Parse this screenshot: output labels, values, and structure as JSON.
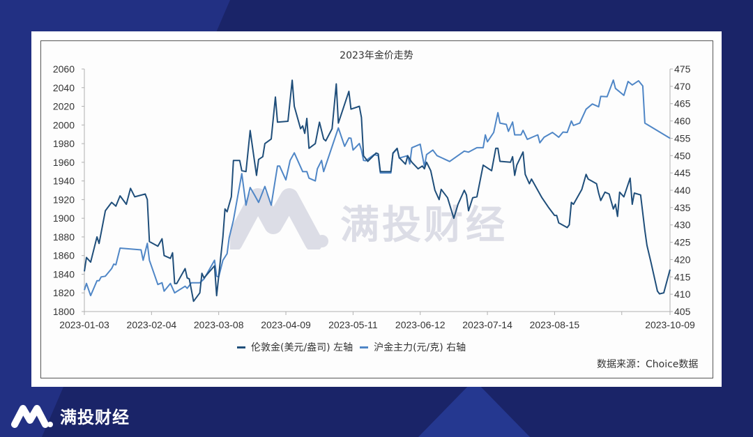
{
  "brand": {
    "name": "满投财经",
    "watermark": "满投财经"
  },
  "colors": {
    "background": "#1a2468",
    "london_gold": "#1f4e7a",
    "shanghai_gold": "#4f86c6"
  },
  "chart_data": {
    "type": "line",
    "title": "2023年金价走势",
    "x_tick_labels": [
      "2023-01-03",
      "2023-02-04",
      "2023-03-08",
      "2023-04-09",
      "2023-05-11",
      "2023-06-12",
      "2023-07-14",
      "2023-08-15",
      "",
      "2023-10-09"
    ],
    "x_ticks": [
      "2023-01-03",
      "2023-02-04",
      "2023-03-08",
      "2023-04-09",
      "2023-05-11",
      "2023-06-12",
      "2023-07-14",
      "2023-08-15",
      "2023-09-16",
      "2023-10-09"
    ],
    "xlim": [
      "2023-01-03",
      "2023-10-09"
    ],
    "y_left": {
      "range": [
        1800,
        2060
      ],
      "ticks": [
        "1800",
        "1820",
        "1840",
        "1860",
        "1880",
        "1900",
        "1920",
        "1940",
        "1960",
        "1980",
        "2000",
        "2020",
        "2040",
        "2060"
      ]
    },
    "y_right": {
      "range": [
        405,
        475
      ],
      "ticks": [
        "405",
        "410",
        "415",
        "420",
        "425",
        "430",
        "435",
        "440",
        "445",
        "450",
        "455",
        "460",
        "465",
        "470",
        "475"
      ]
    },
    "grid": false,
    "legend_position": "bottom",
    "source": "数据来源：Choice数据",
    "series": [
      {
        "name": "伦敦金(美元/盎司) 左轴",
        "axis": "left",
        "points": [
          [
            "2023-01-03",
            1843
          ],
          [
            "2023-01-04",
            1858
          ],
          [
            "2023-01-06",
            1853
          ],
          [
            "2023-01-09",
            1880
          ],
          [
            "2023-01-10",
            1873
          ],
          [
            "2023-01-13",
            1908
          ],
          [
            "2023-01-16",
            1917
          ],
          [
            "2023-01-18",
            1913
          ],
          [
            "2023-01-20",
            1924
          ],
          [
            "2023-01-23",
            1915
          ],
          [
            "2023-01-25",
            1932
          ],
          [
            "2023-01-27",
            1923
          ],
          [
            "2023-02-01",
            1926
          ],
          [
            "2023-02-02",
            1920
          ],
          [
            "2023-02-03",
            1875
          ],
          [
            "2023-02-07",
            1870
          ],
          [
            "2023-02-09",
            1878
          ],
          [
            "2023-02-10",
            1860
          ],
          [
            "2023-02-13",
            1857
          ],
          [
            "2023-02-14",
            1863
          ],
          [
            "2023-02-15",
            1830
          ],
          [
            "2023-02-16",
            1830
          ],
          [
            "2023-02-20",
            1846
          ],
          [
            "2023-02-21",
            1836
          ],
          [
            "2023-02-22",
            1835
          ],
          [
            "2023-02-24",
            1811
          ],
          [
            "2023-02-27",
            1820
          ],
          [
            "2023-02-28",
            1841
          ],
          [
            "2023-03-01",
            1836
          ],
          [
            "2023-03-06",
            1849
          ],
          [
            "2023-03-07",
            1817
          ],
          [
            "2023-03-10",
            1880
          ],
          [
            "2023-03-11",
            1910
          ],
          [
            "2023-03-12",
            1907
          ],
          [
            "2023-03-14",
            1923
          ],
          [
            "2023-03-15",
            1962
          ],
          [
            "2023-03-18",
            1962
          ],
          [
            "2023-03-19",
            1951
          ],
          [
            "2023-03-21",
            1950
          ],
          [
            "2023-03-23",
            1994
          ],
          [
            "2023-03-26",
            1946
          ],
          [
            "2023-03-27",
            1963
          ],
          [
            "2023-03-29",
            1966
          ],
          [
            "2023-03-30",
            1980
          ],
          [
            "2023-04-02",
            1985
          ],
          [
            "2023-04-04",
            2030
          ],
          [
            "2023-04-05",
            2003
          ],
          [
            "2023-04-10",
            2004
          ],
          [
            "2023-04-12",
            2048
          ],
          [
            "2023-04-13",
            2020
          ],
          [
            "2023-04-16",
            1996
          ],
          [
            "2023-04-17",
            1999
          ],
          [
            "2023-04-18",
            1991
          ],
          [
            "2023-04-19",
            2007
          ],
          [
            "2023-04-20",
            1975
          ],
          [
            "2023-04-23",
            1980
          ],
          [
            "2023-04-25",
            2003
          ],
          [
            "2023-04-27",
            1985
          ],
          [
            "2023-04-28",
            1983
          ],
          [
            "2023-05-01",
            1996
          ],
          [
            "2023-05-03",
            2044
          ],
          [
            "2023-05-04",
            2002
          ],
          [
            "2023-05-09",
            2036
          ],
          [
            "2023-05-10",
            2017
          ],
          [
            "2023-05-14",
            2020
          ],
          [
            "2023-05-15",
            2008
          ],
          [
            "2023-05-16",
            1967
          ],
          [
            "2023-05-18",
            1961
          ],
          [
            "2023-05-22",
            1970
          ],
          [
            "2023-05-23",
            1969
          ],
          [
            "2023-05-24",
            1950
          ],
          [
            "2023-05-29",
            1950
          ],
          [
            "2023-05-30",
            1970
          ],
          [
            "2023-06-01",
            1975
          ],
          [
            "2023-06-02",
            1965
          ],
          [
            "2023-06-05",
            1958
          ],
          [
            "2023-06-06",
            1967
          ],
          [
            "2023-06-08",
            1960
          ],
          [
            "2023-06-11",
            1953
          ],
          [
            "2023-06-13",
            1956
          ],
          [
            "2023-06-14",
            1953
          ],
          [
            "2023-06-15",
            1960
          ],
          [
            "2023-06-17",
            1951
          ],
          [
            "2023-06-19",
            1930
          ],
          [
            "2023-06-21",
            1920
          ],
          [
            "2023-06-22",
            1931
          ],
          [
            "2023-06-25",
            1922
          ],
          [
            "2023-06-28",
            1900
          ],
          [
            "2023-06-30",
            1915
          ],
          [
            "2023-07-03",
            1930
          ],
          [
            "2023-07-04",
            1925
          ],
          [
            "2023-07-05",
            1908
          ],
          [
            "2023-07-07",
            1922
          ],
          [
            "2023-07-09",
            1923
          ],
          [
            "2023-07-12",
            1957
          ],
          [
            "2023-07-16",
            1951
          ],
          [
            "2023-07-18",
            1975
          ],
          [
            "2023-07-19",
            1975
          ],
          [
            "2023-07-20",
            1961
          ],
          [
            "2023-07-25",
            1960
          ],
          [
            "2023-07-26",
            1966
          ],
          [
            "2023-07-27",
            1946
          ],
          [
            "2023-07-28",
            1957
          ],
          [
            "2023-07-31",
            1971
          ],
          [
            "2023-08-01",
            1947
          ],
          [
            "2023-08-03",
            1937
          ],
          [
            "2023-08-04",
            1942
          ],
          [
            "2023-08-09",
            1922
          ],
          [
            "2023-08-12",
            1912
          ],
          [
            "2023-08-15",
            1903
          ],
          [
            "2023-08-16",
            1903
          ],
          [
            "2023-08-17",
            1895
          ],
          [
            "2023-08-21",
            1890
          ],
          [
            "2023-08-22",
            1893
          ],
          [
            "2023-08-23",
            1917
          ],
          [
            "2023-08-24",
            1915
          ],
          [
            "2023-08-28",
            1931
          ],
          [
            "2023-08-30",
            1947
          ],
          [
            "2023-08-31",
            1942
          ],
          [
            "2023-09-04",
            1937
          ],
          [
            "2023-09-05",
            1927
          ],
          [
            "2023-09-06",
            1919
          ],
          [
            "2023-09-08",
            1928
          ],
          [
            "2023-09-10",
            1926
          ],
          [
            "2023-09-12",
            1910
          ],
          [
            "2023-09-13",
            1915
          ],
          [
            "2023-09-14",
            1902
          ],
          [
            "2023-09-15",
            1928
          ],
          [
            "2023-09-17",
            1923
          ],
          [
            "2023-09-20",
            1943
          ],
          [
            "2023-09-21",
            1915
          ],
          [
            "2023-09-22",
            1927
          ],
          [
            "2023-09-25",
            1925
          ],
          [
            "2023-09-27",
            1887
          ],
          [
            "2023-09-28",
            1871
          ],
          [
            "2023-09-30",
            1852
          ],
          [
            "2023-10-03",
            1822
          ],
          [
            "2023-10-04",
            1819
          ],
          [
            "2023-10-06",
            1820
          ],
          [
            "2023-10-09",
            1845
          ]
        ]
      },
      {
        "name": "沪金主力(元/克) 右轴",
        "axis": "right",
        "points": [
          [
            "2023-01-03",
            411.2
          ],
          [
            "2023-01-04",
            413.1
          ],
          [
            "2023-01-06",
            409.6
          ],
          [
            "2023-01-09",
            413.9
          ],
          [
            "2023-01-10",
            413.9
          ],
          [
            "2023-01-11",
            415.0
          ],
          [
            "2023-01-13",
            415.2
          ],
          [
            "2023-01-16",
            417.4
          ],
          [
            "2023-01-17",
            418.7
          ],
          [
            "2023-01-18",
            418.5
          ],
          [
            "2023-01-20",
            423.3
          ],
          [
            "2023-01-30",
            422.8
          ],
          [
            "2023-01-31",
            419.8
          ],
          [
            "2023-02-02",
            424.7
          ],
          [
            "2023-02-03",
            419.8
          ],
          [
            "2023-02-07",
            412.8
          ],
          [
            "2023-02-09",
            413.3
          ],
          [
            "2023-02-10",
            410.9
          ],
          [
            "2023-02-13",
            413.1
          ],
          [
            "2023-02-15",
            410.4
          ],
          [
            "2023-02-20",
            412.3
          ],
          [
            "2023-02-21",
            411.7
          ],
          [
            "2023-02-23",
            413.3
          ],
          [
            "2023-02-27",
            413.3
          ],
          [
            "2023-03-01",
            414.4
          ],
          [
            "2023-03-06",
            419.8
          ],
          [
            "2023-03-07",
            415.2
          ],
          [
            "2023-03-08",
            415.0
          ],
          [
            "2023-03-10",
            419.8
          ],
          [
            "2023-03-12",
            421.7
          ],
          [
            "2023-03-13",
            426.3
          ],
          [
            "2023-03-15",
            431.4
          ],
          [
            "2023-03-19",
            444.8
          ],
          [
            "2023-03-21",
            435.7
          ],
          [
            "2023-03-23",
            440.8
          ],
          [
            "2023-03-25",
            438.7
          ],
          [
            "2023-03-27",
            436.5
          ],
          [
            "2023-03-30",
            441.1
          ],
          [
            "2023-04-02",
            435.7
          ],
          [
            "2023-04-05",
            447.0
          ],
          [
            "2023-04-06",
            447.0
          ],
          [
            "2023-04-09",
            443.0
          ],
          [
            "2023-04-11",
            448.6
          ],
          [
            "2023-04-13",
            450.8
          ],
          [
            "2023-04-17",
            445.4
          ],
          [
            "2023-04-19",
            445.4
          ],
          [
            "2023-04-20",
            443.5
          ],
          [
            "2023-04-23",
            442.7
          ],
          [
            "2023-04-24",
            446.2
          ],
          [
            "2023-04-26",
            448.6
          ],
          [
            "2023-04-27",
            445.4
          ],
          [
            "2023-05-04",
            458.0
          ],
          [
            "2023-05-07",
            452.7
          ],
          [
            "2023-05-09",
            455.1
          ],
          [
            "2023-05-10",
            455.0
          ],
          [
            "2023-05-11",
            451.6
          ],
          [
            "2023-05-14",
            453.5
          ],
          [
            "2023-05-15",
            451.6
          ],
          [
            "2023-05-16",
            448.6
          ],
          [
            "2023-05-17",
            448.5
          ],
          [
            "2023-05-21",
            450.3
          ],
          [
            "2023-05-23",
            450.0
          ],
          [
            "2023-05-24",
            445.0
          ],
          [
            "2023-05-29",
            445.0
          ],
          [
            "2023-05-30",
            450.6
          ],
          [
            "2023-06-01",
            452.0
          ],
          [
            "2023-06-02",
            449.3
          ],
          [
            "2023-06-06",
            450.0
          ],
          [
            "2023-06-07",
            447.6
          ],
          [
            "2023-06-08",
            452.3
          ],
          [
            "2023-06-12",
            453.3
          ],
          [
            "2023-06-14",
            446.9
          ],
          [
            "2023-06-15",
            450.3
          ],
          [
            "2023-06-18",
            451.6
          ],
          [
            "2023-06-20",
            450.0
          ],
          [
            "2023-06-26",
            448.3
          ],
          [
            "2023-07-03",
            451.3
          ],
          [
            "2023-07-05",
            451.0
          ],
          [
            "2023-07-09",
            452.3
          ],
          [
            "2023-07-12",
            452.3
          ],
          [
            "2023-07-13",
            456.0
          ],
          [
            "2023-07-14",
            454.0
          ],
          [
            "2023-07-17",
            456.7
          ],
          [
            "2023-07-19",
            462.4
          ],
          [
            "2023-07-20",
            459.4
          ],
          [
            "2023-07-23",
            459.0
          ],
          [
            "2023-07-24",
            457.0
          ],
          [
            "2023-07-26",
            459.7
          ],
          [
            "2023-07-27",
            456.0
          ],
          [
            "2023-07-30",
            456.0
          ],
          [
            "2023-07-31",
            457.3
          ],
          [
            "2023-08-02",
            454.7
          ],
          [
            "2023-08-07",
            456.0
          ],
          [
            "2023-08-08",
            453.7
          ],
          [
            "2023-08-10",
            455.3
          ],
          [
            "2023-08-14",
            456.7
          ],
          [
            "2023-08-17",
            455.3
          ],
          [
            "2023-08-19",
            456.8
          ],
          [
            "2023-08-21",
            456.7
          ],
          [
            "2023-08-23",
            460.0
          ],
          [
            "2023-08-24",
            458.7
          ],
          [
            "2023-08-27",
            459.4
          ],
          [
            "2023-08-30",
            463.4
          ],
          [
            "2023-09-02",
            464.9
          ],
          [
            "2023-09-05",
            464.1
          ],
          [
            "2023-09-06",
            467.1
          ],
          [
            "2023-09-09",
            467.0
          ],
          [
            "2023-09-12",
            471.8
          ],
          [
            "2023-09-13",
            469.4
          ],
          [
            "2023-09-17",
            467.4
          ],
          [
            "2023-09-19",
            471.4
          ],
          [
            "2023-09-21",
            470.4
          ],
          [
            "2023-09-24",
            471.6
          ],
          [
            "2023-09-26",
            470.1
          ],
          [
            "2023-09-27",
            459.4
          ],
          [
            "2023-10-09",
            455.0
          ]
        ]
      }
    ]
  }
}
